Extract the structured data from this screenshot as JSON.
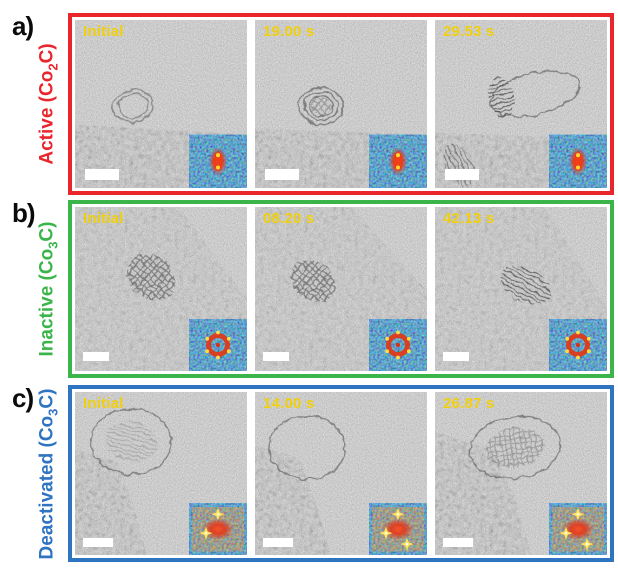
{
  "figure": {
    "description": "In-situ TEM image series of cobalt carbide catalysts with FFT insets",
    "timestamp_color": "#f0d00e",
    "glyphs": {
      "fft_inset": "colored FFT diffractogram inset (bottom-right of each micrograph)",
      "scale_bar": "white scale bar (bottom-left of each micrograph)"
    },
    "rows": [
      {
        "panel_letter": "a)",
        "label_pre": "Active (Co",
        "label_sub": "2",
        "label_post": "C)",
        "border_color": "#e8262c",
        "panels": [
          {
            "time": "Initial"
          },
          {
            "time": "19.00 s"
          },
          {
            "time": "29.53 s"
          }
        ]
      },
      {
        "panel_letter": "b)",
        "label_pre": "Inactive (Co",
        "label_sub": "3",
        "label_post": "C)",
        "border_color": "#3bb54a",
        "panels": [
          {
            "time": "Initial"
          },
          {
            "time": "08.20 s"
          },
          {
            "time": "42.13 s"
          }
        ]
      },
      {
        "panel_letter": "c)",
        "label_pre": "Deactivated (Co",
        "label_sub": "3",
        "label_post": "C)",
        "border_color": "#2e74c0",
        "panels": [
          {
            "time": "Initial"
          },
          {
            "time": "14.00 s"
          },
          {
            "time": "26.87 s"
          }
        ]
      }
    ]
  }
}
